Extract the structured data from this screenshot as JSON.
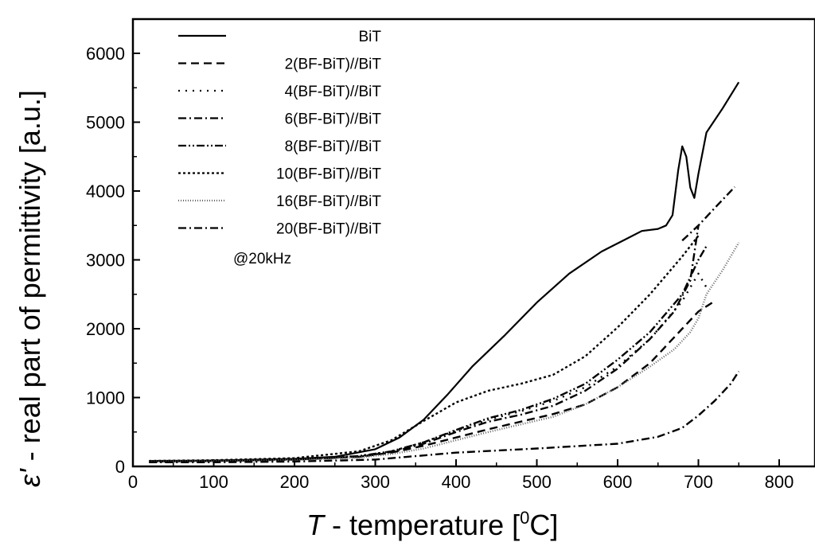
{
  "chart_data": {
    "type": "line",
    "xlabel": {
      "symbol": "T",
      "text": " - temperature [",
      "sup": "0",
      "unit": "C]"
    },
    "ylabel": {
      "symbol": "ε'",
      "text": " - real part of permittivity [a.u.]"
    },
    "xlim": [
      0,
      850
    ],
    "ylim": [
      0,
      6500
    ],
    "xticks": [
      0,
      100,
      200,
      300,
      400,
      500,
      600,
      700,
      800
    ],
    "yticks": [
      0,
      1000,
      2000,
      3000,
      4000,
      5000,
      6000
    ],
    "legend_position": "top-left",
    "annotation": "@20kHz",
    "grid": false,
    "series": [
      {
        "name": "BiT",
        "dash": "solid",
        "x": [
          20,
          100,
          200,
          250,
          300,
          330,
          360,
          390,
          420,
          460,
          500,
          540,
          580,
          610,
          630,
          650,
          660,
          668,
          675,
          680,
          685,
          690,
          695,
          700,
          710,
          730,
          750
        ],
        "y": [
          80,
          85,
          110,
          140,
          250,
          420,
          680,
          1050,
          1450,
          1900,
          2380,
          2800,
          3120,
          3300,
          3420,
          3450,
          3500,
          3650,
          4300,
          4650,
          4500,
          4050,
          3900,
          4250,
          4850,
          5200,
          5580
        ]
      },
      {
        "name": "2(BF-BiT)//BiT",
        "dash": "dash",
        "x": [
          20,
          100,
          200,
          280,
          320,
          360,
          400,
          440,
          480,
          520,
          560,
          600,
          640,
          680,
          700,
          720
        ],
        "y": [
          70,
          80,
          100,
          140,
          200,
          300,
          420,
          540,
          650,
          760,
          900,
          1150,
          1500,
          2000,
          2250,
          2400
        ]
      },
      {
        "name": "4(BF-BiT)//BiT",
        "dash": "dot",
        "x": [
          20,
          100,
          200,
          280,
          320,
          360,
          400,
          440,
          480,
          520,
          560,
          600,
          640,
          680,
          700,
          710
        ],
        "y": [
          70,
          80,
          100,
          150,
          220,
          350,
          520,
          680,
          800,
          950,
          1150,
          1450,
          1850,
          2400,
          2800,
          2600
        ]
      },
      {
        "name": "6(BF-BiT)//BiT",
        "dash": "dashdot",
        "x": [
          20,
          100,
          200,
          280,
          320,
          360,
          400,
          440,
          480,
          520,
          560,
          600,
          640,
          670,
          690,
          700
        ],
        "y": [
          70,
          80,
          100,
          140,
          210,
          330,
          500,
          650,
          750,
          880,
          1100,
          1420,
          1850,
          2250,
          2700,
          3500
        ]
      },
      {
        "name": "8(BF-BiT)//BiT",
        "dash": "dashdotdot",
        "x": [
          20,
          100,
          200,
          280,
          320,
          360,
          400,
          440,
          480,
          520,
          560,
          600,
          640,
          680,
          700,
          710
        ],
        "y": [
          70,
          80,
          100,
          150,
          220,
          350,
          530,
          700,
          820,
          980,
          1200,
          1550,
          1950,
          2500,
          3000,
          3200
        ]
      },
      {
        "name": "10(BF-BiT)//BiT",
        "dash": "shortdot",
        "x": [
          20,
          100,
          200,
          280,
          320,
          360,
          400,
          440,
          480,
          520,
          560,
          600,
          640,
          680,
          700
        ],
        "y": [
          80,
          90,
          120,
          220,
          380,
          660,
          930,
          1100,
          1200,
          1330,
          1600,
          2020,
          2500,
          3050,
          3350
        ]
      },
      {
        "name": "16(BF-BiT)//BiT",
        "dash": "finedot",
        "x": [
          20,
          100,
          200,
          280,
          320,
          360,
          400,
          440,
          480,
          520,
          560,
          600,
          640,
          670,
          690,
          700,
          710,
          730,
          750
        ],
        "y": [
          70,
          75,
          95,
          130,
          180,
          260,
          380,
          500,
          610,
          720,
          900,
          1150,
          1450,
          1700,
          1950,
          2150,
          2500,
          2850,
          3250
        ]
      },
      {
        "name": "20(BF-BiT)//BiT",
        "dash": "dashdot",
        "x": [
          20,
          100,
          200,
          300,
          400,
          500,
          600,
          650,
          680,
          700,
          720,
          740,
          750
        ],
        "y": [
          60,
          60,
          70,
          100,
          200,
          260,
          330,
          430,
          560,
          740,
          950,
          1200,
          1380
        ]
      },
      {
        "name": "",
        "dash": "dashdot",
        "x": [
          680,
          700,
          720,
          745
        ],
        "y": [
          3280,
          3500,
          3750,
          4060
        ]
      }
    ]
  }
}
